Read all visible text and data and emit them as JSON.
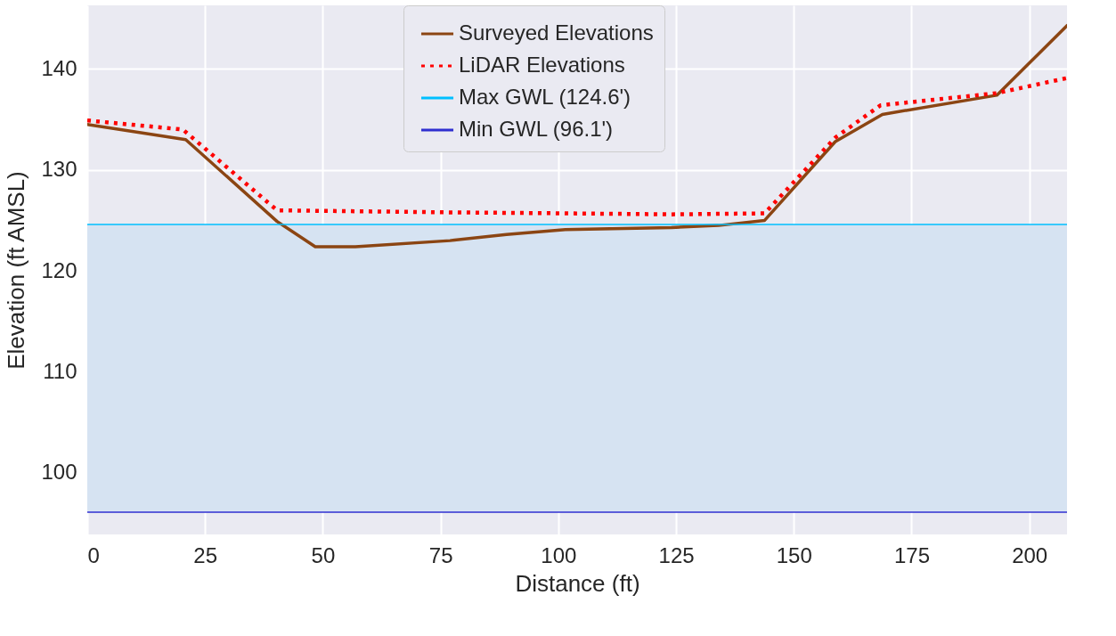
{
  "chart_data": {
    "type": "line",
    "xlabel": "Distance (ft)",
    "ylabel": "Elevation (ft AMSL)",
    "xlim": [
      0,
      208
    ],
    "ylim": [
      93.9,
      146.3
    ],
    "xticks": [
      0,
      25,
      50,
      75,
      100,
      125,
      150,
      175,
      200
    ],
    "yticks": [
      100,
      110,
      120,
      130,
      140
    ],
    "grid": true,
    "legend": "top",
    "series": [
      {
        "name": "Surveyed Elevations",
        "color": "#8b4513",
        "line_style": "solid",
        "x": [
          0,
          20.9,
          40.3,
          48.4,
          56.9,
          77,
          89,
          101.5,
          124,
          134,
          143.8,
          158.8,
          168.8,
          193.1,
          208
        ],
        "values": [
          134.5,
          133.0,
          124.9,
          122.4,
          122.4,
          123.0,
          123.6,
          124.1,
          124.3,
          124.5,
          125.0,
          132.8,
          135.5,
          137.4,
          144.3
        ]
      },
      {
        "name": "LiDAR Elevations",
        "color": "#ff0000",
        "line_style": "dotted",
        "x": [
          0,
          20.3,
          40.3,
          76.5,
          101.5,
          124,
          143.8,
          158.8,
          168.4,
          193,
          208
        ],
        "values": [
          134.9,
          134.0,
          126.0,
          125.8,
          125.7,
          125.6,
          125.7,
          133.2,
          136.4,
          137.6,
          139.1
        ]
      }
    ],
    "ref_lines": [
      {
        "axis": "y",
        "value": 124.6,
        "label": "Max GWL (124.6')",
        "color": "#00bfff",
        "line_style": "solid"
      },
      {
        "axis": "y",
        "value": 96.1,
        "label": "Min GWL (96.1')",
        "color": "#2f2fd0",
        "line_style": "solid"
      }
    ],
    "bands": [
      {
        "axis": "y",
        "from": 96.1,
        "to": 124.6,
        "color": "#d6e3f2"
      }
    ]
  }
}
